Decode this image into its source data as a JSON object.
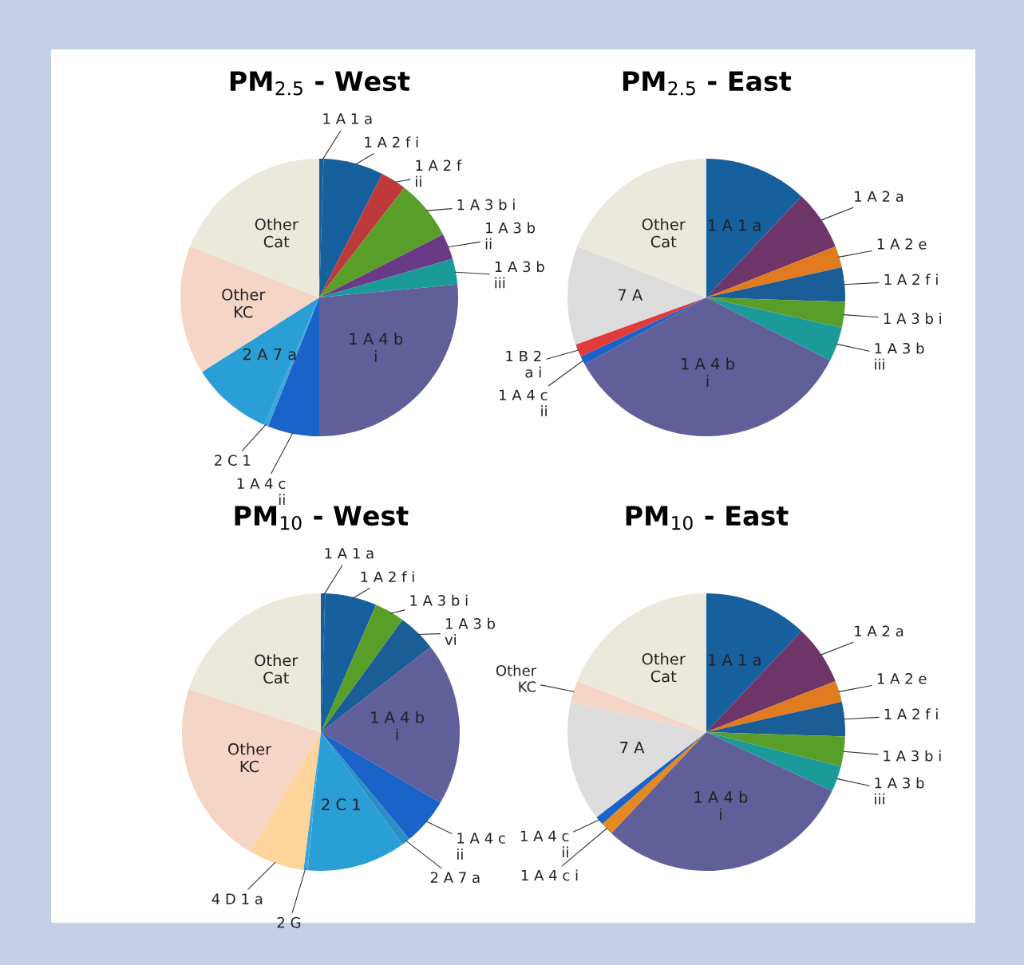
{
  "chart_data": [
    {
      "type": "pie",
      "title": "PM$_{2.5}$ - West",
      "categories": [
        "1 A 1 a",
        "1 A 2 f i",
        "1 A 2 f\nii",
        "1 A 3 b i",
        "1 A 3 b\nii",
        "1 A 3 b\niii",
        "1 A 4 b\ni",
        "1 A 4 c\nii",
        "2 C 1",
        "2 A 7 a",
        "Other\nKC",
        "Other\nCat"
      ],
      "values": [
        0.5,
        7,
        3,
        7,
        3,
        3,
        26.5,
        6,
        0.5,
        9.5,
        15,
        19
      ],
      "colors": [
        "#1b5d96",
        "#17609e",
        "#be3a3a",
        "#5a9e2a",
        "#6b3a86",
        "#1b9a9a",
        "#615f9a",
        "#1a63c8",
        "#3aa6da",
        "#2a9fd6",
        "#f5d5c6",
        "#ebe8dc"
      ],
      "legend": false
    },
    {
      "type": "pie",
      "title": "PM$_{2.5}$ - East",
      "categories": [
        "1 A 1 a",
        "1 A 2 a",
        "1 A 2 e",
        "1 A 2 f i",
        "1 A 3 b i",
        "1 A 3 b\niii",
        "1 A 4 b\ni",
        "1 A 4 c\nii",
        "1 B 2\na i",
        "7 A",
        "Other\nCat"
      ],
      "values": [
        12,
        7,
        2.5,
        4,
        3,
        4,
        34.5,
        1,
        1.5,
        11.5,
        19
      ],
      "colors": [
        "#17609e",
        "#6e3569",
        "#e07b20",
        "#1b5d96",
        "#5a9e2a",
        "#1b9a9a",
        "#615f9a",
        "#1a63c8",
        "#e03a3a",
        "#dcdcdc",
        "#ebe8dc"
      ],
      "legend": false
    },
    {
      "type": "pie",
      "title": "PM$_{10}$ - West",
      "categories": [
        "1 A 1 a",
        "1 A 2 f i",
        "1 A 3 b i",
        "1 A 3 b\nvi",
        "1 A 4 b\ni",
        "1 A 4 c\nii",
        "2 A 7 a",
        "2 C 1",
        "2 G",
        "4 D 1 a",
        "Other\nKC",
        "Other\nCat"
      ],
      "values": [
        0.5,
        6,
        3.5,
        4.5,
        19,
        5.5,
        1,
        11.5,
        0.5,
        6.5,
        21.5,
        20
      ],
      "colors": [
        "#1b5d96",
        "#17609e",
        "#5a9e2a",
        "#1b5d96",
        "#615f9a",
        "#1a63c8",
        "#2a8fc6",
        "#2a9fd6",
        "#3aa6da",
        "#fdd49a",
        "#f5d5c6",
        "#ebe8dc"
      ],
      "legend": false
    },
    {
      "type": "pie",
      "title": "PM$_{10}$ - East",
      "categories": [
        "1 A 1 a",
        "1 A 2 a",
        "1 A 2 e",
        "1 A 2 f i",
        "1 A 3 b i",
        "1 A 3 b\niii",
        "1 A 4 b\ni",
        "1 A 4 c i",
        "1 A 4 c\nii",
        "7 A",
        "Other\nKC",
        "Other\nCat"
      ],
      "values": [
        12,
        7,
        2.5,
        4,
        3.5,
        3,
        30,
        1.5,
        1,
        14,
        2.5,
        19
      ],
      "colors": [
        "#17609e",
        "#6e3569",
        "#e07b20",
        "#1b5d96",
        "#5a9e2a",
        "#1b9a9a",
        "#615f9a",
        "#e58a20",
        "#1a63c8",
        "#dcdcdc",
        "#f5d5c6",
        "#ebe8dc"
      ],
      "legend": false
    }
  ]
}
